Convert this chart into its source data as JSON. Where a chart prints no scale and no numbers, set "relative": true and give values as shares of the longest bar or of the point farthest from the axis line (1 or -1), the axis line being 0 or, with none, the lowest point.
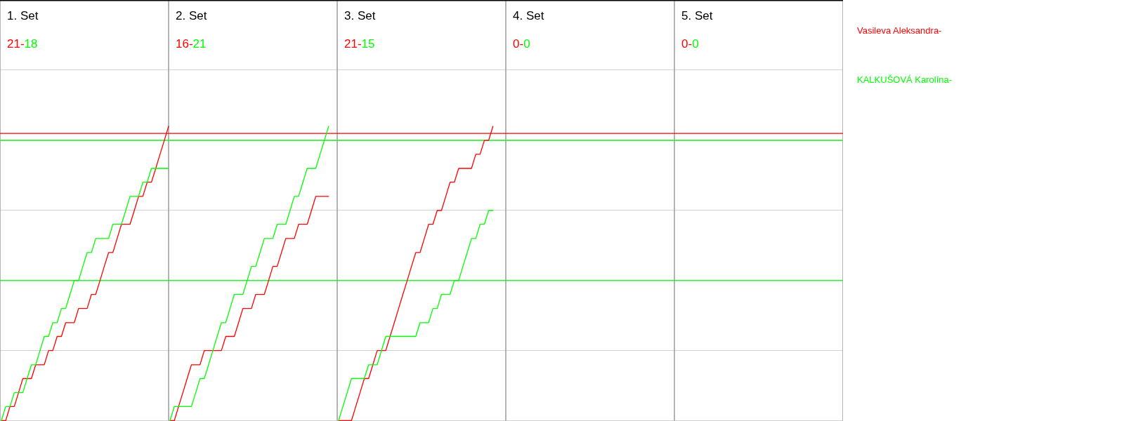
{
  "chart_data": [
    {
      "type": "line",
      "title": "1. Set",
      "annotations": [
        "21-",
        "18"
      ],
      "relative": true,
      "categories": [
        null,
        null,
        null,
        null,
        null,
        null,
        null,
        null,
        null,
        null,
        null,
        null,
        null,
        null,
        null,
        null,
        null,
        null,
        null,
        null,
        null,
        null,
        null,
        null,
        null,
        null,
        null,
        null,
        null,
        null,
        null,
        null,
        null,
        null,
        null,
        null,
        null,
        null,
        null,
        null
      ],
      "grid": "y",
      "ref_lines": [
        {
          "axis": "y",
          "value": 0.976,
          "color": "#ff0000"
        },
        {
          "axis": "y",
          "value": 0.952,
          "color": "#00ff00"
        },
        {
          "axis": "y",
          "value": 0.476,
          "color": "#00ff00"
        }
      ],
      "series": [
        {
          "name": "Vasileva Aleksandra-",
          "color": "#ff0000",
          "values": [
            0,
            0,
            0.048,
            0.048,
            0.095,
            0.143,
            0.143,
            0.143,
            0.19,
            0.19,
            0.19,
            0.238,
            0.238,
            0.286,
            0.286,
            0.333,
            0.333,
            0.333,
            0.381,
            0.381,
            0.381,
            0.429,
            0.429,
            0.476,
            0.524,
            0.571,
            0.571,
            0.619,
            0.667,
            0.667,
            0.667,
            0.714,
            0.762,
            0.762,
            0.81,
            0.81,
            0.857,
            0.905,
            0.952,
            1
          ]
        },
        {
          "name": "KALKUŠOVÁ Karolína-",
          "color": "#00ff00",
          "values": [
            0,
            0.048,
            0.048,
            0.095,
            0.095,
            0.095,
            0.143,
            0.19,
            0.19,
            0.238,
            0.286,
            0.286,
            0.333,
            0.333,
            0.381,
            0.381,
            0.429,
            0.476,
            0.476,
            0.524,
            0.571,
            0.571,
            0.619,
            0.619,
            0.619,
            0.619,
            0.667,
            0.667,
            0.667,
            0.714,
            0.762,
            0.762,
            0.762,
            0.81,
            0.81,
            0.857,
            0.857,
            0.857,
            0.857,
            0.857
          ]
        }
      ]
    },
    {
      "type": "line",
      "title": "2. Set",
      "annotations": [
        "16-",
        "21"
      ],
      "relative": true,
      "categories": [
        null,
        null,
        null,
        null,
        null,
        null,
        null,
        null,
        null,
        null,
        null,
        null,
        null,
        null,
        null,
        null,
        null,
        null,
        null,
        null,
        null,
        null,
        null,
        null,
        null,
        null,
        null,
        null,
        null,
        null,
        null,
        null,
        null,
        null,
        null,
        null,
        null,
        null
      ],
      "grid": "y",
      "series": [
        {
          "color": "#ff0000",
          "values": [
            0,
            0,
            0.048,
            0.095,
            0.143,
            0.19,
            0.19,
            0.19,
            0.238,
            0.238,
            0.238,
            0.238,
            0.238,
            0.286,
            0.286,
            0.286,
            0.333,
            0.381,
            0.381,
            0.381,
            0.429,
            0.429,
            0.429,
            0.476,
            0.524,
            0.524,
            0.571,
            0.619,
            0.619,
            0.619,
            0.667,
            0.667,
            0.667,
            0.714,
            0.762,
            0.762,
            0.762,
            0.762
          ]
        },
        {
          "color": "#00ff00",
          "values": [
            0,
            0.048,
            0.048,
            0.048,
            0.048,
            0.048,
            0.095,
            0.143,
            0.143,
            0.19,
            0.238,
            0.286,
            0.333,
            0.333,
            0.381,
            0.429,
            0.429,
            0.429,
            0.476,
            0.524,
            0.524,
            0.571,
            0.619,
            0.619,
            0.619,
            0.667,
            0.667,
            0.667,
            0.714,
            0.762,
            0.762,
            0.81,
            0.857,
            0.857,
            0.857,
            0.905,
            0.952,
            1
          ]
        }
      ]
    },
    {
      "type": "line",
      "title": "3. Set",
      "annotations": [
        "21-",
        "15"
      ],
      "relative": true,
      "categories": [
        null,
        null,
        null,
        null,
        null,
        null,
        null,
        null,
        null,
        null,
        null,
        null,
        null,
        null,
        null,
        null,
        null,
        null,
        null,
        null,
        null,
        null,
        null,
        null,
        null,
        null,
        null,
        null,
        null,
        null,
        null,
        null,
        null,
        null,
        null,
        null,
        null
      ],
      "grid": "y",
      "series": [
        {
          "color": "#ff0000",
          "values": [
            0,
            0,
            0,
            0,
            0.048,
            0.095,
            0.143,
            0.143,
            0.19,
            0.238,
            0.238,
            0.238,
            0.286,
            0.333,
            0.381,
            0.429,
            0.476,
            0.524,
            0.571,
            0.571,
            0.619,
            0.667,
            0.667,
            0.714,
            0.714,
            0.762,
            0.81,
            0.81,
            0.857,
            0.857,
            0.857,
            0.857,
            0.905,
            0.905,
            0.952,
            0.952,
            1
          ]
        },
        {
          "color": "#00ff00",
          "values": [
            0,
            0.048,
            0.095,
            0.143,
            0.143,
            0.143,
            0.143,
            0.19,
            0.19,
            0.19,
            0.238,
            0.286,
            0.286,
            0.286,
            0.286,
            0.286,
            0.286,
            0.286,
            0.286,
            0.333,
            0.333,
            0.333,
            0.381,
            0.381,
            0.429,
            0.429,
            0.429,
            0.476,
            0.476,
            0.524,
            0.571,
            0.619,
            0.619,
            0.667,
            0.667,
            0.714,
            0.714
          ]
        }
      ]
    },
    {
      "type": "other",
      "title": "4. Set",
      "annotations": [
        "0-",
        "0"
      ]
    },
    {
      "type": "other",
      "title": "5. Set",
      "annotations": [
        "0-",
        "0"
      ]
    }
  ]
}
